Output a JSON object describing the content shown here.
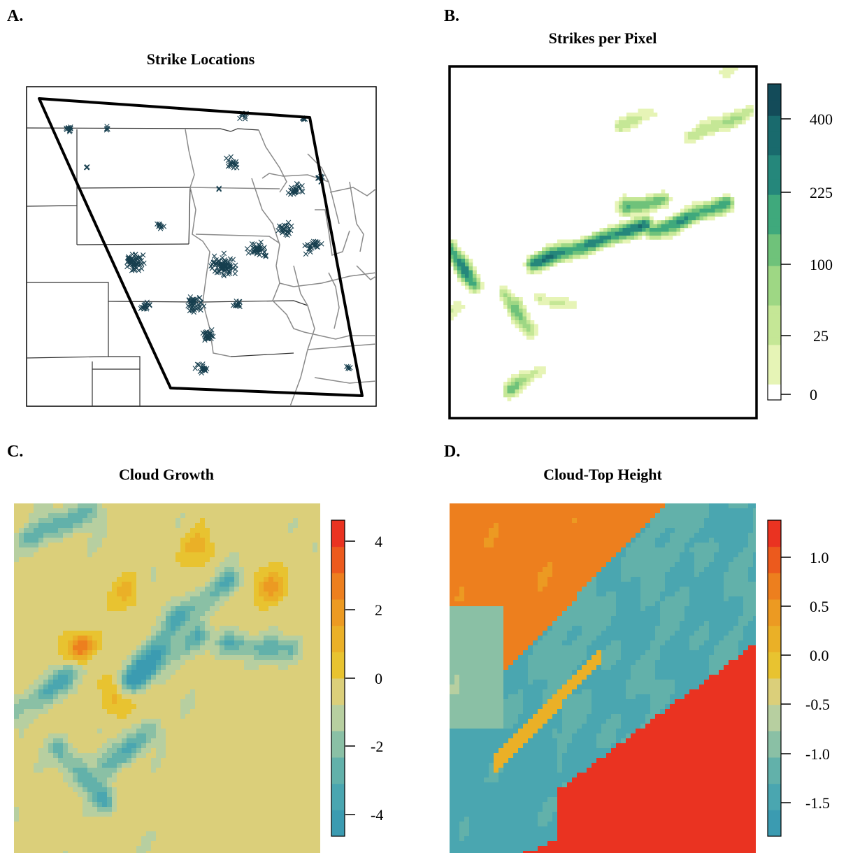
{
  "chart_data": [
    {
      "panel": "A.",
      "type": "scatter",
      "title": "Strike Locations",
      "marker": "×",
      "marker_color": "#173f4f",
      "grid": false,
      "legend": "none",
      "clusters": [
        {
          "x": 0.12,
          "y": 0.87,
          "n": 12,
          "spread": 0.012
        },
        {
          "x": 0.23,
          "y": 0.87,
          "n": 5,
          "spread": 0.008
        },
        {
          "x": 0.17,
          "y": 0.75,
          "n": 3,
          "spread": 0.006
        },
        {
          "x": 0.62,
          "y": 0.91,
          "n": 8,
          "spread": 0.015
        },
        {
          "x": 0.79,
          "y": 0.9,
          "n": 6,
          "spread": 0.01
        },
        {
          "x": 0.59,
          "y": 0.76,
          "n": 18,
          "spread": 0.025
        },
        {
          "x": 0.55,
          "y": 0.68,
          "n": 3,
          "spread": 0.005
        },
        {
          "x": 0.77,
          "y": 0.68,
          "n": 25,
          "spread": 0.03
        },
        {
          "x": 0.84,
          "y": 0.71,
          "n": 10,
          "spread": 0.015
        },
        {
          "x": 0.38,
          "y": 0.56,
          "n": 10,
          "spread": 0.015
        },
        {
          "x": 0.31,
          "y": 0.45,
          "n": 60,
          "spread": 0.04
        },
        {
          "x": 0.34,
          "y": 0.31,
          "n": 18,
          "spread": 0.02
        },
        {
          "x": 0.56,
          "y": 0.44,
          "n": 70,
          "spread": 0.045
        },
        {
          "x": 0.66,
          "y": 0.49,
          "n": 40,
          "spread": 0.035
        },
        {
          "x": 0.74,
          "y": 0.55,
          "n": 25,
          "spread": 0.03
        },
        {
          "x": 0.82,
          "y": 0.5,
          "n": 22,
          "spread": 0.03
        },
        {
          "x": 0.48,
          "y": 0.32,
          "n": 40,
          "spread": 0.035
        },
        {
          "x": 0.52,
          "y": 0.22,
          "n": 25,
          "spread": 0.025
        },
        {
          "x": 0.5,
          "y": 0.12,
          "n": 18,
          "spread": 0.025
        },
        {
          "x": 0.6,
          "y": 0.32,
          "n": 12,
          "spread": 0.02
        },
        {
          "x": 0.92,
          "y": 0.12,
          "n": 5,
          "spread": 0.01
        }
      ]
    },
    {
      "panel": "B.",
      "type": "heatmap",
      "title": "Strikes per Pixel",
      "colorbar_ticks": [
        "400",
        "225",
        "100",
        "25",
        "0"
      ],
      "colorbar_colors": [
        "#ffffff",
        "#e6f4b6",
        "#c5e796",
        "#9ed784",
        "#6fc27a",
        "#3fa97c",
        "#25877b",
        "#196a6d",
        "#134b59"
      ]
    },
    {
      "panel": "C.",
      "type": "heatmap",
      "title": "Cloud Growth",
      "colorbar_ticks": [
        "4",
        "2",
        "0",
        "-2",
        "-4"
      ],
      "value_range": [
        -4.8,
        4.6
      ],
      "colorbar_colors": [
        "#3b9bb1",
        "#4aa6b0",
        "#62b1aa",
        "#8ac0a5",
        "#b7cfa0",
        "#dbcf7a",
        "#e8c330",
        "#eab027",
        "#ec9a22",
        "#ed7f1e",
        "#ec5a1d",
        "#ea3321"
      ]
    },
    {
      "panel": "D.",
      "type": "heatmap",
      "title": "Cloud-Top Height",
      "colorbar_ticks": [
        "1.0",
        "0.5",
        "0.0",
        "-0.5",
        "-1.0",
        "-1.5"
      ],
      "value_range": [
        -1.85,
        1.35
      ],
      "colorbar_colors": [
        "#3b9bb1",
        "#4aa6b0",
        "#62b1aa",
        "#8ac0a5",
        "#b7cfa0",
        "#dbcf7a",
        "#e8c330",
        "#eab027",
        "#ec9a22",
        "#ed7f1e",
        "#ec5a1d",
        "#ea3321"
      ]
    }
  ]
}
